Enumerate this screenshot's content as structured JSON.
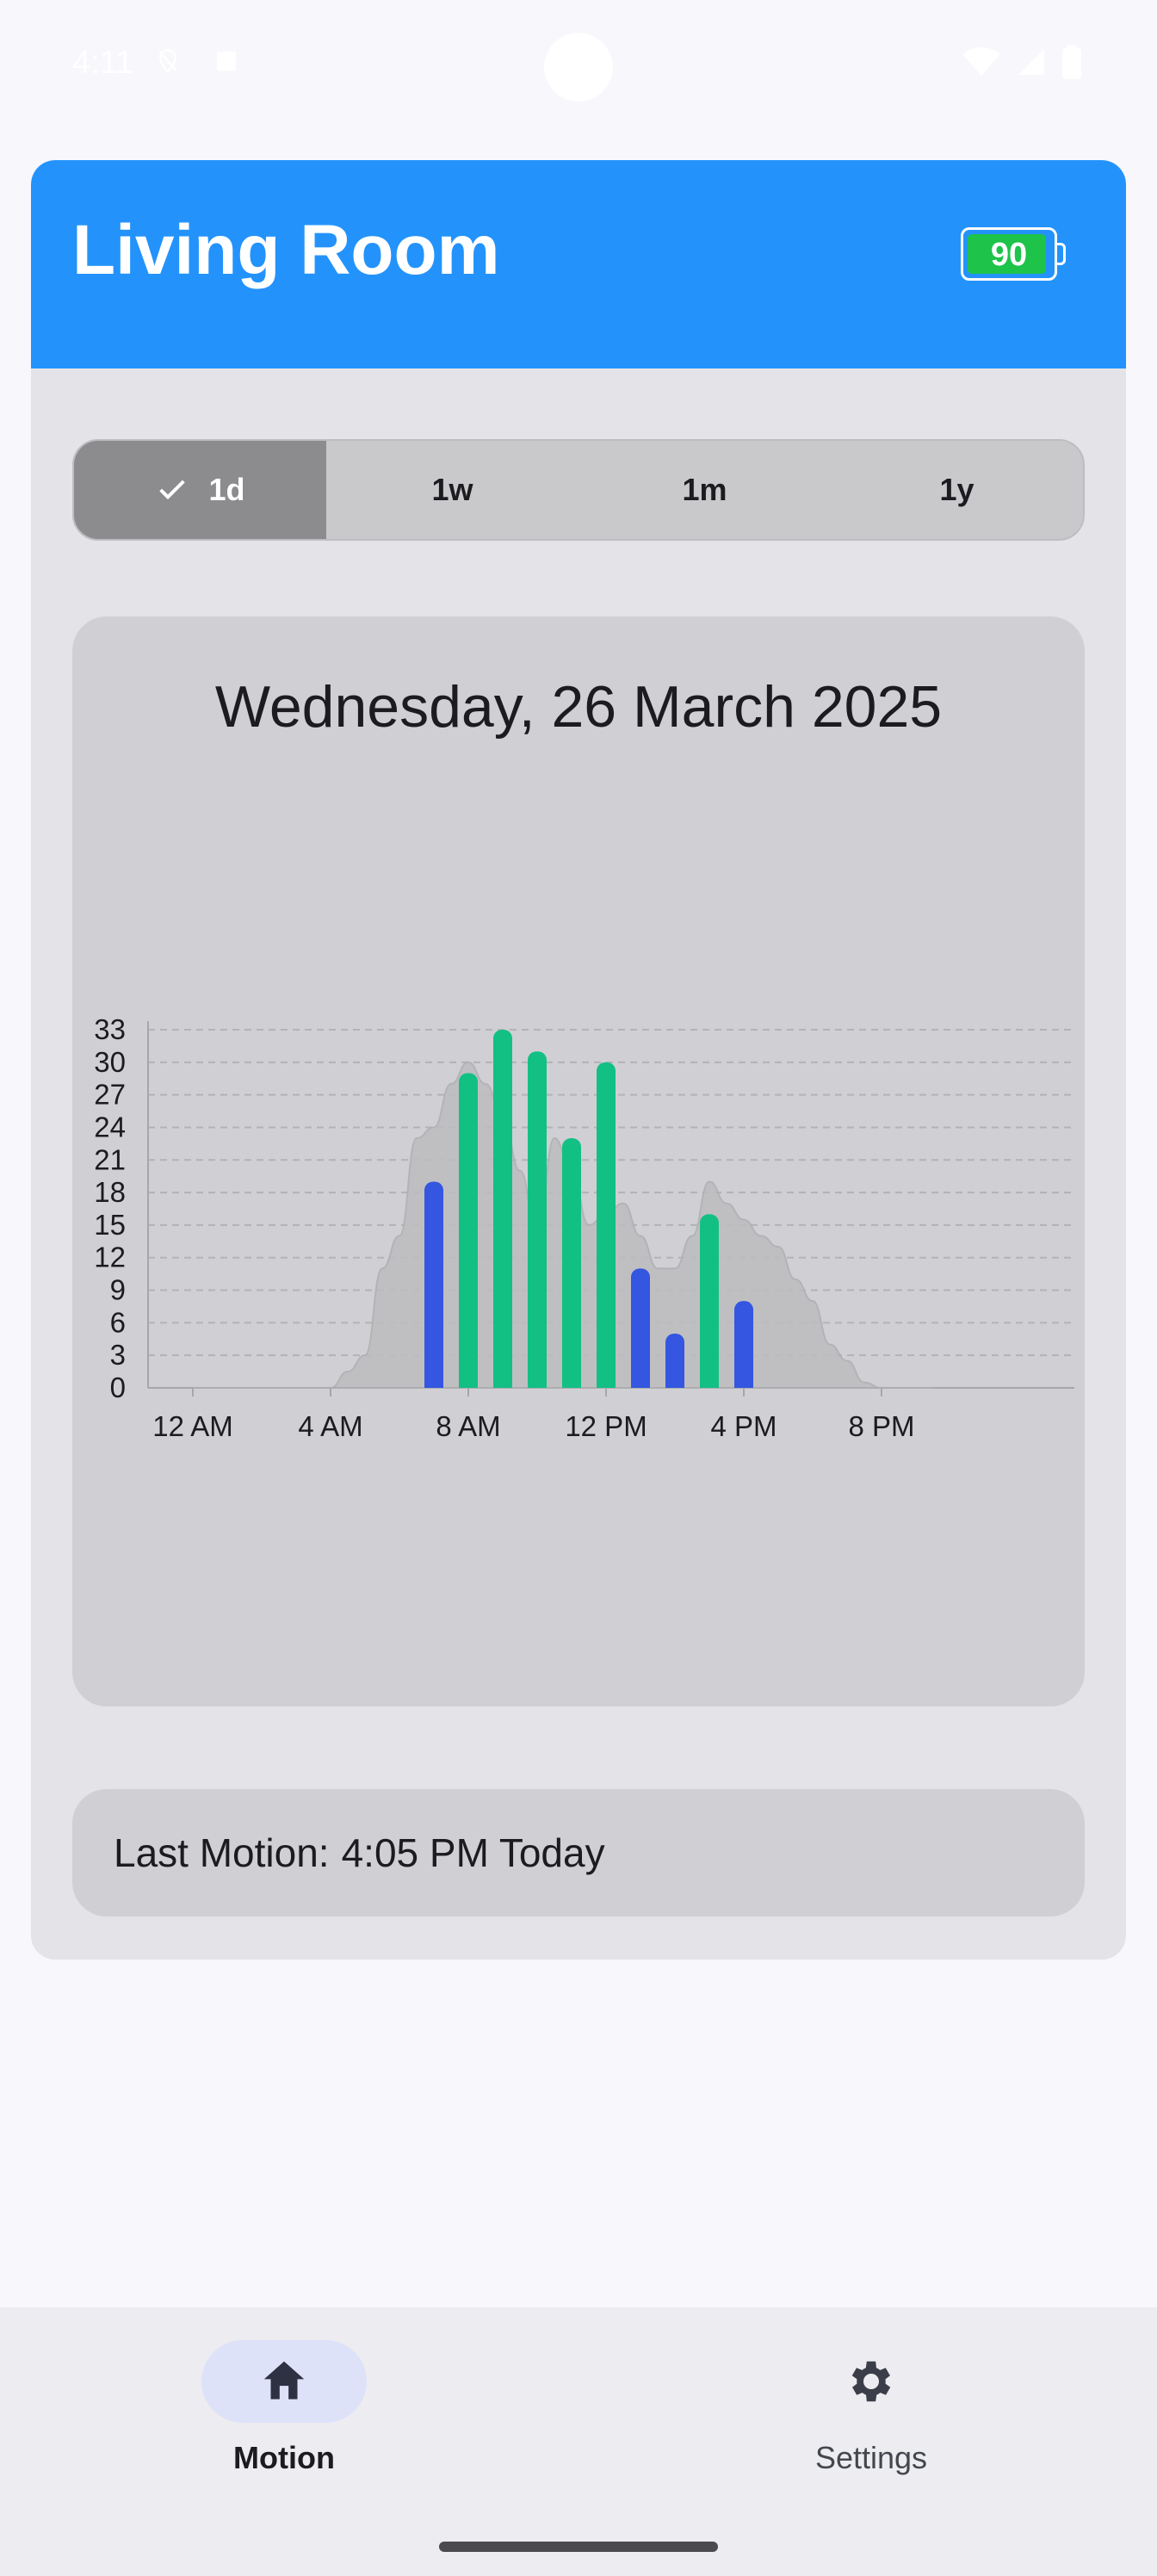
{
  "status_bar": {
    "time": "4:11"
  },
  "header": {
    "title": "Living Room",
    "battery_level": "90",
    "battery_fraction": 0.9,
    "accent": "#2393fb"
  },
  "range_tabs": [
    {
      "label": "1d",
      "selected": true
    },
    {
      "label": "1w",
      "selected": false
    },
    {
      "label": "1m",
      "selected": false
    },
    {
      "label": "1y",
      "selected": false
    }
  ],
  "chart_data": {
    "type": "bar",
    "title": "Wednesday, 26 March 2025",
    "xlabel": "",
    "ylabel": "",
    "ylim": [
      0,
      33
    ],
    "yticks": [
      "0",
      "3",
      "6",
      "9",
      "12",
      "15",
      "18",
      "21",
      "24",
      "27",
      "30",
      "33"
    ],
    "xticks": [
      {
        "label": "12 AM",
        "hour": 0
      },
      {
        "label": "4 AM",
        "hour": 4
      },
      {
        "label": "8 AM",
        "hour": 8
      },
      {
        "label": "12 PM",
        "hour": 12
      },
      {
        "label": "4 PM",
        "hour": 16
      },
      {
        "label": "8 PM",
        "hour": 20
      }
    ],
    "grid": true,
    "bars": [
      {
        "hour": 7,
        "value": 19,
        "color": "#3456e0"
      },
      {
        "hour": 8,
        "value": 29,
        "color": "#12c083"
      },
      {
        "hour": 9,
        "value": 33,
        "color": "#12c083"
      },
      {
        "hour": 10,
        "value": 31,
        "color": "#12c083"
      },
      {
        "hour": 11,
        "value": 23,
        "color": "#12c083"
      },
      {
        "hour": 12,
        "value": 30,
        "color": "#12c083"
      },
      {
        "hour": 13,
        "value": 11,
        "color": "#3456e0"
      },
      {
        "hour": 14,
        "value": 5,
        "color": "#3456e0"
      },
      {
        "hour": 15,
        "value": 16,
        "color": "#12c083"
      },
      {
        "hour": 16,
        "value": 8,
        "color": "#3456e0"
      }
    ],
    "background_area": {
      "color": "#bdbdbf",
      "points": [
        [
          0,
          0
        ],
        [
          4,
          0
        ],
        [
          4.5,
          1.5
        ],
        [
          5,
          3
        ],
        [
          5.5,
          11
        ],
        [
          6,
          14
        ],
        [
          6.5,
          23
        ],
        [
          7,
          24
        ],
        [
          7.5,
          28
        ],
        [
          8,
          30
        ],
        [
          8.5,
          28
        ],
        [
          9,
          25
        ],
        [
          9.5,
          20
        ],
        [
          10,
          14
        ],
        [
          10.5,
          23
        ],
        [
          11,
          20
        ],
        [
          11.5,
          15
        ],
        [
          12,
          16
        ],
        [
          12.5,
          17
        ],
        [
          13,
          14
        ],
        [
          13.5,
          11
        ],
        [
          14,
          11
        ],
        [
          14.5,
          14
        ],
        [
          15,
          19
        ],
        [
          15.5,
          17
        ],
        [
          16,
          15.5
        ],
        [
          16.5,
          14
        ],
        [
          17,
          13
        ],
        [
          17.5,
          10
        ],
        [
          18,
          8
        ],
        [
          18.5,
          4
        ],
        [
          19,
          2.5
        ],
        [
          19.5,
          0.5
        ],
        [
          20,
          0
        ],
        [
          21.5,
          0
        ]
      ]
    }
  },
  "last_motion": {
    "label": "Last Motion:",
    "value": "4:05 PM Today"
  },
  "nav": [
    {
      "label": "Motion",
      "icon": "home-icon",
      "active": true
    },
    {
      "label": "Settings",
      "icon": "gear-icon",
      "active": false
    }
  ]
}
